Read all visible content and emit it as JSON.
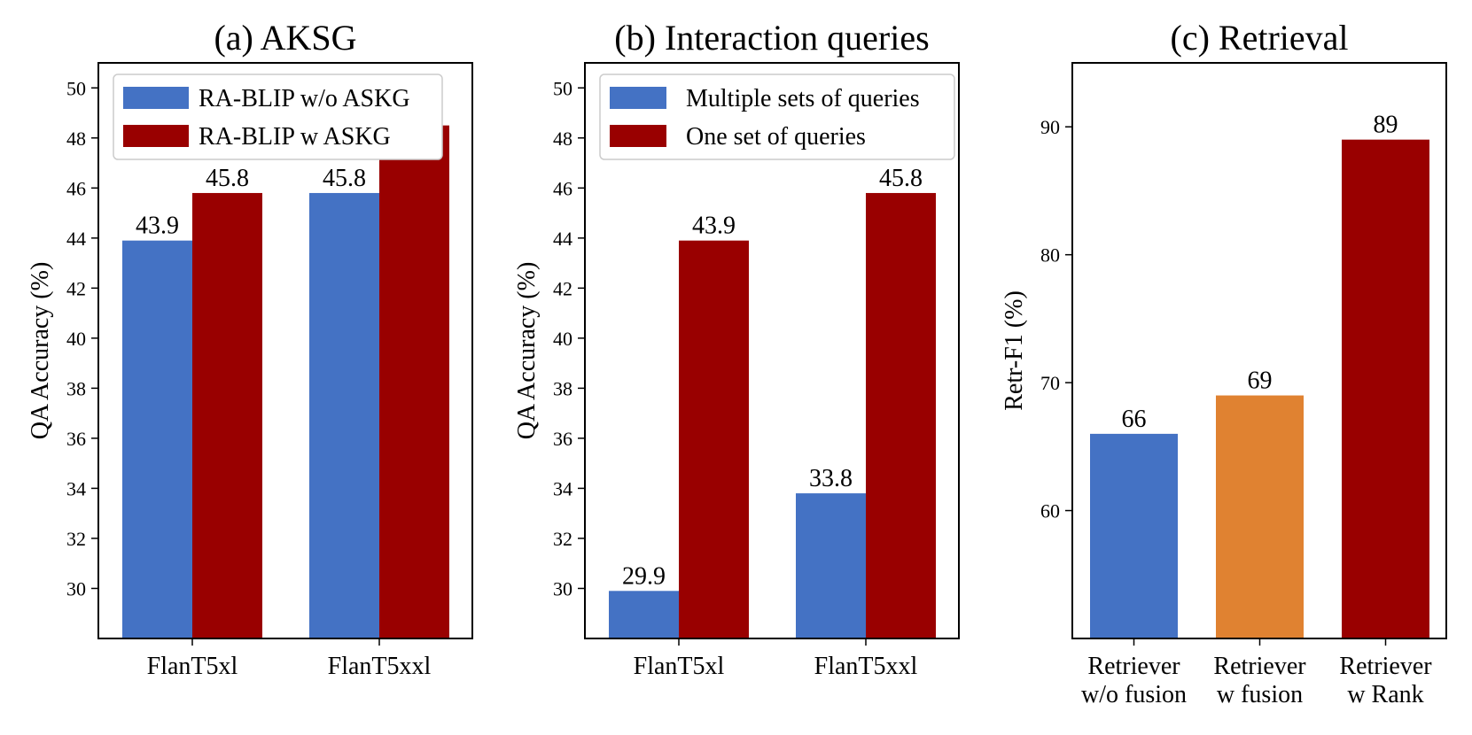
{
  "colors": {
    "blue": "#4472C4",
    "red": "#990000",
    "orange": "#E08231"
  },
  "chart_data": [
    {
      "type": "bar",
      "title": "(a) AKSG",
      "ylabel": "QA   Accuracy (%)",
      "xlabel": "",
      "categories": [
        "FlanT5xl",
        "FlanT5xxl"
      ],
      "ylim": [
        28,
        51
      ],
      "yticks": [
        30,
        32,
        34,
        36,
        38,
        40,
        42,
        44,
        46,
        48,
        50
      ],
      "legend_position": "top",
      "series": [
        {
          "name": "RA-BLIP w/o ASKG",
          "color": "#4472C4",
          "values": [
            43.9,
            45.8
          ]
        },
        {
          "name": "RA-BLIP w ASKG",
          "color": "#990000",
          "values": [
            45.8,
            48.5
          ]
        }
      ]
    },
    {
      "type": "bar",
      "title": "(b) Interaction queries",
      "ylabel": "QA   Accuracy (%)",
      "xlabel": "",
      "categories": [
        "FlanT5xl",
        "FlanT5xxl"
      ],
      "ylim": [
        28,
        51
      ],
      "yticks": [
        30,
        32,
        34,
        36,
        38,
        40,
        42,
        44,
        46,
        48,
        50
      ],
      "legend_position": "top",
      "series": [
        {
          "name": "Multiple sets of queries",
          "color": "#4472C4",
          "values": [
            29.9,
            33.8
          ]
        },
        {
          "name": "One set of queries",
          "color": "#990000",
          "values": [
            43.9,
            45.8
          ]
        }
      ]
    },
    {
      "type": "bar",
      "title": "(c) Retrieval",
      "ylabel": "Retr-F1 (%)",
      "xlabel": "",
      "categories": [
        [
          "Retriever",
          "w/o fusion"
        ],
        [
          "Retriever",
          "w fusion"
        ],
        [
          "Retriever",
          "w Rank"
        ]
      ],
      "ylim": [
        50,
        95
      ],
      "yticks": [
        60,
        70,
        80,
        90
      ],
      "values": [
        66,
        69,
        89
      ],
      "bar_colors": [
        "#4472C4",
        "#E08231",
        "#990000"
      ]
    }
  ]
}
